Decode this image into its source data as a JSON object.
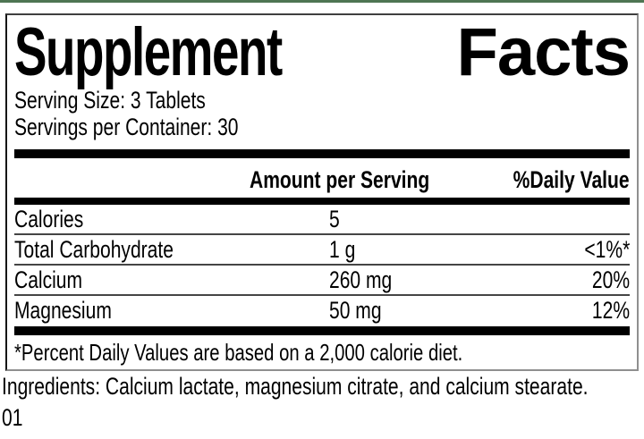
{
  "colors": {
    "accent_green": "#4e7553",
    "bar_black": "#000000",
    "separator_gray": "#454545"
  },
  "label": {
    "title": {
      "word1": "Supplement",
      "word2": "Facts"
    },
    "serving": {
      "size": "Serving Size: 3 Tablets",
      "per_container": "Servings per Container: 30"
    },
    "table": {
      "headers": {
        "amount": "Amount per Serving",
        "daily_value": "%Daily Value"
      },
      "rows": [
        {
          "name": "Calories",
          "amount": "5",
          "dv": ""
        },
        {
          "name": "Total Carbohydrate",
          "amount": "1 g",
          "dv": "<1%*"
        },
        {
          "name": "Calcium",
          "amount": "260 mg",
          "dv": "20%"
        },
        {
          "name": "Magnesium",
          "amount": "50 mg",
          "dv": "12%"
        }
      ],
      "footnote": "*Percent Daily Values are based on a 2,000 calorie diet."
    },
    "ingredients": "Ingredients: Calcium lactate, magnesium citrate, and calcium stearate.",
    "code": "01"
  }
}
